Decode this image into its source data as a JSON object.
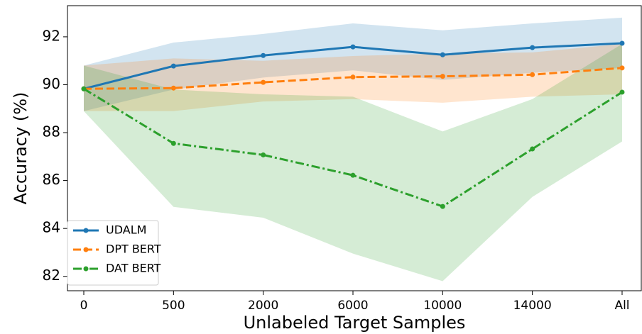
{
  "chart_data": {
    "type": "line",
    "x_label": "Unlabeled Target Samples",
    "y_label": "Accuracy (%)",
    "categories": [
      "0",
      "500",
      "2000",
      "6000",
      "10000",
      "14000",
      "All"
    ],
    "ylim": [
      81.4,
      93.3
    ],
    "yticks": [
      82,
      84,
      86,
      88,
      90,
      92
    ],
    "legend": "lower left",
    "series": [
      {
        "name": "UDALM",
        "color": "#1f77b4",
        "dash": "solid",
        "values": [
          89.83,
          90.78,
          91.22,
          91.58,
          91.25,
          91.55,
          91.73
        ],
        "upper": [
          90.8,
          91.76,
          92.12,
          92.56,
          92.27,
          92.56,
          92.8
        ],
        "lower": [
          88.9,
          89.8,
          90.3,
          90.6,
          90.2,
          90.5,
          90.7
        ]
      },
      {
        "name": "DPT BERT",
        "color": "#ff7f0e",
        "dash": "dashed",
        "values": [
          89.83,
          89.86,
          90.1,
          90.32,
          90.35,
          90.42,
          90.7
        ],
        "upper": [
          90.8,
          91.1,
          91.0,
          91.2,
          91.3,
          91.35,
          91.7
        ],
        "lower": [
          88.9,
          88.9,
          89.3,
          89.4,
          89.25,
          89.5,
          89.6
        ]
      },
      {
        "name": "DAT BERT",
        "color": "#2ca02c",
        "dash": "dashdot",
        "values": [
          89.83,
          87.55,
          87.07,
          86.22,
          84.92,
          87.32,
          89.69
        ],
        "upper": [
          90.8,
          89.8,
          89.6,
          89.5,
          88.05,
          89.4,
          91.7
        ],
        "lower": [
          88.9,
          84.9,
          84.45,
          82.95,
          81.8,
          85.32,
          87.63
        ]
      }
    ]
  }
}
